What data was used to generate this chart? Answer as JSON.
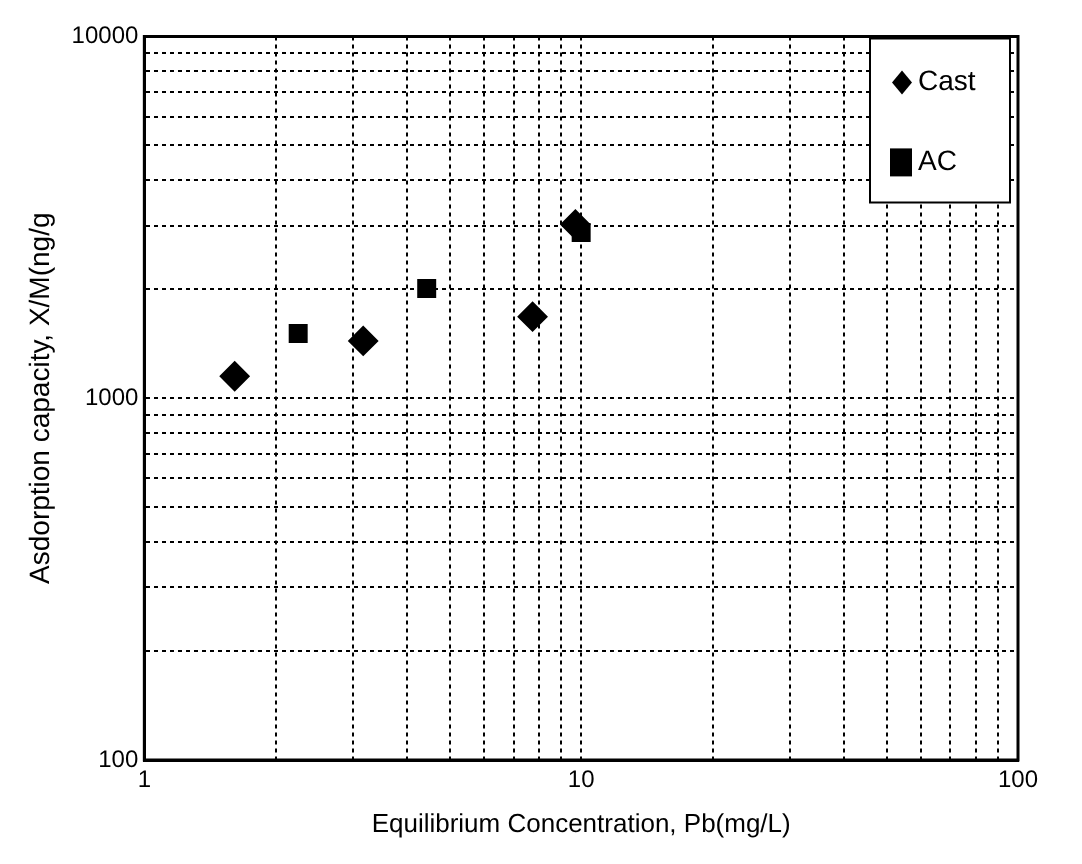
{
  "chart_data": {
    "type": "scatter",
    "xlabel": "Equilibrium Concentration, Pb(mg/L)",
    "ylabel": "Asdorption capacity, X/M(ng/g",
    "log": "xy",
    "xlim": [
      1,
      100
    ],
    "ylim": [
      100,
      10000
    ],
    "xticks": [
      1,
      10,
      100
    ],
    "yticks": [
      100,
      1000,
      10000
    ],
    "grid": true,
    "legend": "top right",
    "series": [
      {
        "name": "Cast",
        "color": "#000000",
        "marker": "diamond",
        "x": [
          1.61,
          3.17,
          7.74,
          9.7
        ],
        "values": [
          1150,
          1440,
          1680,
          3020
        ]
      },
      {
        "name": "AC",
        "color": "#000000",
        "marker": "square",
        "x": [
          2.25,
          4.43,
          10
        ],
        "values": [
          1510,
          2010,
          2870
        ]
      }
    ]
  }
}
